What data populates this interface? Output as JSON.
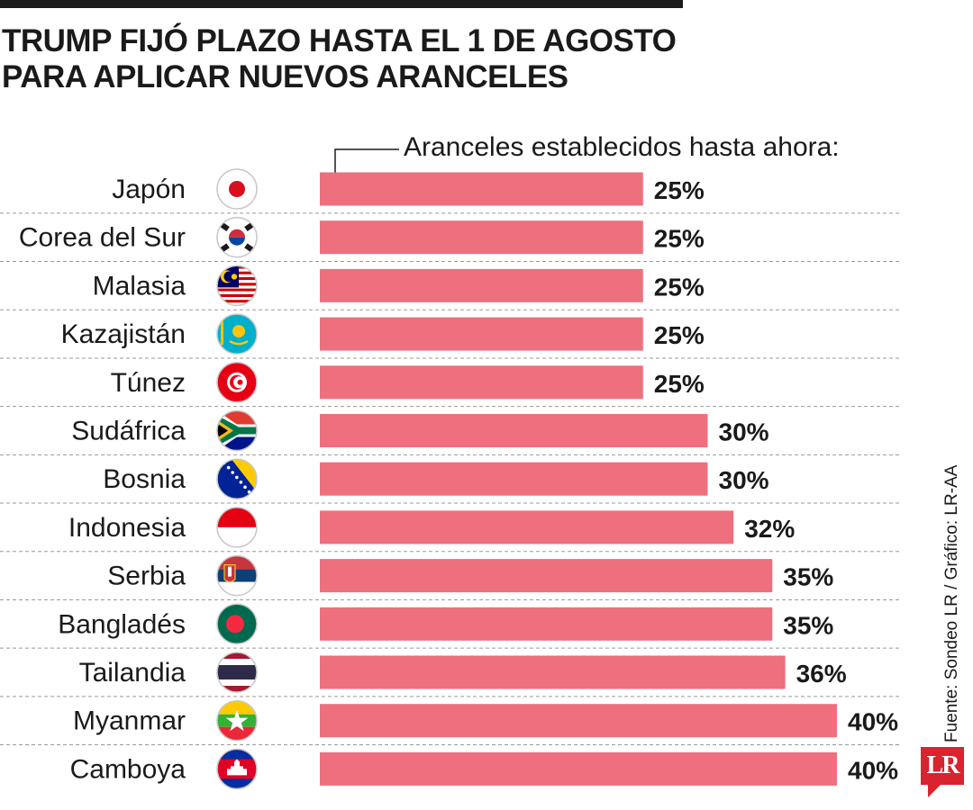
{
  "header": {
    "title_line1": "TRUMP FIJÓ PLAZO HASTA EL 1 DE AGOSTO",
    "title_line2": "PARA APLICAR NUEVOS ARANCELES"
  },
  "source": "Fuente: Sondeo LR / Gráfico: LR-AA",
  "logo": "LR",
  "chart_data": {
    "type": "bar",
    "orientation": "horizontal",
    "title": "TRUMP FIJÓ PLAZO HASTA EL 1 DE AGOSTO PARA APLICAR NUEVOS ARANCELES",
    "subtitle": "Aranceles establecidos hasta ahora:",
    "categories": [
      "Japón",
      "Corea del Sur",
      "Malasia",
      "Kazajistán",
      "Túnez",
      "Sudáfrica",
      "Bosnia",
      "Indonesia",
      "Serbia",
      "Bangladés",
      "Tailandia",
      "Myanmar",
      "Camboya"
    ],
    "values": [
      25,
      25,
      25,
      25,
      25,
      30,
      30,
      32,
      35,
      35,
      36,
      40,
      40
    ],
    "value_labels": [
      "25%",
      "25%",
      "25%",
      "25%",
      "25%",
      "30%",
      "30%",
      "32%",
      "35%",
      "35%",
      "36%",
      "40%",
      "40%"
    ],
    "xlim": [
      0,
      40
    ],
    "bar_color": "#ee6f7e",
    "grid": false,
    "legend": "none"
  },
  "flags": [
    "japan-flag-icon",
    "south-korea-flag-icon",
    "malaysia-flag-icon",
    "kazakhstan-flag-icon",
    "tunisia-flag-icon",
    "south-africa-flag-icon",
    "bosnia-flag-icon",
    "indonesia-flag-icon",
    "serbia-flag-icon",
    "bangladesh-flag-icon",
    "thailand-flag-icon",
    "myanmar-flag-icon",
    "cambodia-flag-icon"
  ]
}
